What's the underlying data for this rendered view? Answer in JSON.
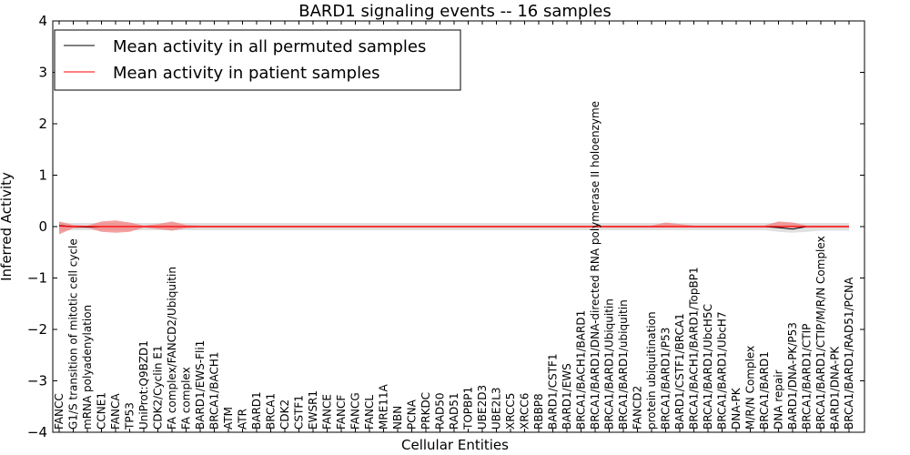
{
  "chart_data": {
    "type": "line",
    "title": "BARD1 signaling events -- 16 samples",
    "xlabel": "Cellular Entities",
    "ylabel": "Inferred Activity",
    "ylim": [
      -4,
      4
    ],
    "yticks": [
      -4,
      -3,
      -2,
      -1,
      0,
      1,
      2,
      3,
      4
    ],
    "ytick_labels": [
      "−4",
      "−3",
      "−2",
      "−1",
      "0",
      "1",
      "2",
      "3",
      "4"
    ],
    "legend_position": "top-left",
    "categories": [
      "FANCC",
      "G1/S transition of mitotic cell cycle",
      "mRNA polyadenylation",
      "CCNE1",
      "FANCA",
      "TP53",
      "UniProt:Q9BZD1",
      "CDK2/Cyclin E1",
      "FA complex/FANCD2/Ubiquitin",
      "FA complex",
      "BARD1/EWS-Fli1",
      "BRCA1/BACH1",
      "ATM",
      "ATR",
      "BARD1",
      "BRCA1",
      "CDK2",
      "CSTF1",
      "EWSR1",
      "FANCE",
      "FANCF",
      "FANCG",
      "FANCL",
      "MRE11A",
      "NBN",
      "PCNA",
      "PRKDC",
      "RAD50",
      "RAD51",
      "TOPBP1",
      "UBE2D3",
      "UBE2L3",
      "XRCC5",
      "XRCC6",
      "RBBP8",
      "BARD1/CSTF1",
      "BARD1/EWS",
      "BRCA1/BACH1/BARD1",
      "BRCA1/BARD1/DNA-directed RNA polymerase II holoenzyme",
      "BRCA1/BARD1/Ubiquitin",
      "BRCA1/BARD1/ubiquitin",
      "FANCD2",
      "protein ubiquitination",
      "BRCA1/BARD1/P53",
      "BARD1/CSTF1/BRCA1",
      "BRCA1/BACH1/BARD1/TopBP1",
      "BRCA1/BARD1/UbcH5C",
      "BRCA1/BARD1/UbcH7",
      "DNA-PK",
      "M/R/N Complex",
      "BRCA1/BARD1",
      "DNA repair",
      "BARD1/DNA-PK/P53",
      "BRCA1/BARD1/CTIP",
      "BRCA1/BARD1/CTIP/M/R/N Complex",
      "BARD1/DNA-PK",
      "BRCA1/BARD1/RAD51/PCNA"
    ],
    "series": [
      {
        "name": "Mean activity in all permuted samples",
        "color": "#000000",
        "band_color": "#cccccc",
        "values": [
          0.02,
          0.0,
          -0.01,
          0.0,
          0.0,
          0.0,
          0.0,
          0.0,
          0.0,
          0.0,
          0.0,
          0.0,
          0.0,
          0.0,
          0.0,
          0.0,
          0.0,
          0.0,
          0.0,
          0.0,
          0.0,
          0.0,
          0.0,
          0.0,
          0.0,
          0.0,
          0.0,
          0.0,
          0.0,
          0.0,
          0.0,
          0.0,
          0.0,
          0.0,
          0.0,
          0.0,
          0.0,
          0.0,
          0.0,
          0.0,
          0.0,
          0.0,
          0.0,
          0.0,
          0.0,
          0.0,
          0.0,
          0.0,
          0.0,
          0.0,
          0.0,
          -0.02,
          -0.05,
          0.0,
          0.0,
          0.0,
          0.0
        ],
        "lower": [
          -0.08,
          -0.07,
          -0.07,
          -0.07,
          -0.07,
          -0.07,
          -0.07,
          -0.07,
          -0.07,
          -0.07,
          -0.07,
          -0.07,
          -0.07,
          -0.07,
          -0.07,
          -0.07,
          -0.07,
          -0.07,
          -0.07,
          -0.07,
          -0.07,
          -0.07,
          -0.07,
          -0.07,
          -0.07,
          -0.07,
          -0.07,
          -0.07,
          -0.07,
          -0.07,
          -0.07,
          -0.07,
          -0.07,
          -0.07,
          -0.07,
          -0.07,
          -0.07,
          -0.07,
          -0.07,
          -0.07,
          -0.07,
          -0.07,
          -0.07,
          -0.07,
          -0.07,
          -0.07,
          -0.07,
          -0.07,
          -0.07,
          -0.07,
          -0.07,
          -0.1,
          -0.12,
          -0.1,
          -0.08,
          -0.08,
          -0.08
        ],
        "upper": [
          0.08,
          0.07,
          0.07,
          0.07,
          0.07,
          0.07,
          0.07,
          0.07,
          0.07,
          0.07,
          0.07,
          0.07,
          0.07,
          0.07,
          0.07,
          0.07,
          0.07,
          0.07,
          0.07,
          0.07,
          0.07,
          0.07,
          0.07,
          0.07,
          0.07,
          0.07,
          0.07,
          0.07,
          0.07,
          0.07,
          0.07,
          0.07,
          0.07,
          0.07,
          0.07,
          0.07,
          0.07,
          0.07,
          0.07,
          0.07,
          0.07,
          0.07,
          0.07,
          0.07,
          0.07,
          0.07,
          0.07,
          0.07,
          0.07,
          0.07,
          0.07,
          0.07,
          0.07,
          0.07,
          0.07,
          0.07,
          0.07
        ]
      },
      {
        "name": "Mean activity in patient samples",
        "color": "#ff0000",
        "band_color": "#f08080",
        "values": [
          0.01,
          0.0,
          0.0,
          0.0,
          0.0,
          0.0,
          0.0,
          0.0,
          0.0,
          0.0,
          0.0,
          0.0,
          0.0,
          0.0,
          0.0,
          0.0,
          0.0,
          0.0,
          0.0,
          0.0,
          0.0,
          0.0,
          0.0,
          0.0,
          0.0,
          0.0,
          0.0,
          0.0,
          0.0,
          0.0,
          0.0,
          0.0,
          0.0,
          0.0,
          0.0,
          0.0,
          0.0,
          0.0,
          0.0,
          0.0,
          0.0,
          0.0,
          0.0,
          0.0,
          0.0,
          0.0,
          0.0,
          0.0,
          0.0,
          0.0,
          0.0,
          0.0,
          0.0,
          0.0,
          0.0,
          0.0,
          0.0
        ],
        "lower": [
          -0.15,
          -0.03,
          -0.02,
          -0.1,
          -0.12,
          -0.1,
          -0.02,
          -0.05,
          -0.08,
          -0.03,
          -0.02,
          -0.02,
          -0.02,
          -0.02,
          -0.02,
          -0.02,
          -0.02,
          -0.02,
          -0.02,
          -0.02,
          -0.02,
          -0.02,
          -0.02,
          -0.02,
          -0.02,
          -0.02,
          -0.02,
          -0.02,
          -0.02,
          -0.02,
          -0.02,
          -0.02,
          -0.02,
          -0.02,
          -0.02,
          -0.02,
          -0.02,
          -0.02,
          -0.02,
          -0.02,
          -0.02,
          -0.02,
          -0.02,
          -0.02,
          -0.02,
          -0.02,
          -0.02,
          -0.02,
          -0.02,
          -0.02,
          -0.02,
          -0.02,
          -0.02,
          -0.02,
          -0.02,
          -0.02,
          -0.02
        ],
        "upper": [
          0.1,
          0.03,
          0.02,
          0.1,
          0.12,
          0.08,
          0.02,
          0.05,
          0.1,
          0.03,
          0.02,
          0.02,
          0.02,
          0.02,
          0.02,
          0.02,
          0.02,
          0.02,
          0.02,
          0.02,
          0.02,
          0.02,
          0.02,
          0.02,
          0.02,
          0.02,
          0.02,
          0.02,
          0.02,
          0.02,
          0.02,
          0.02,
          0.02,
          0.02,
          0.02,
          0.02,
          0.02,
          0.02,
          0.02,
          0.02,
          0.02,
          0.02,
          0.02,
          0.08,
          0.05,
          0.02,
          0.02,
          0.02,
          0.02,
          0.02,
          0.02,
          0.1,
          0.08,
          0.02,
          0.02,
          0.02,
          0.02
        ]
      }
    ]
  }
}
